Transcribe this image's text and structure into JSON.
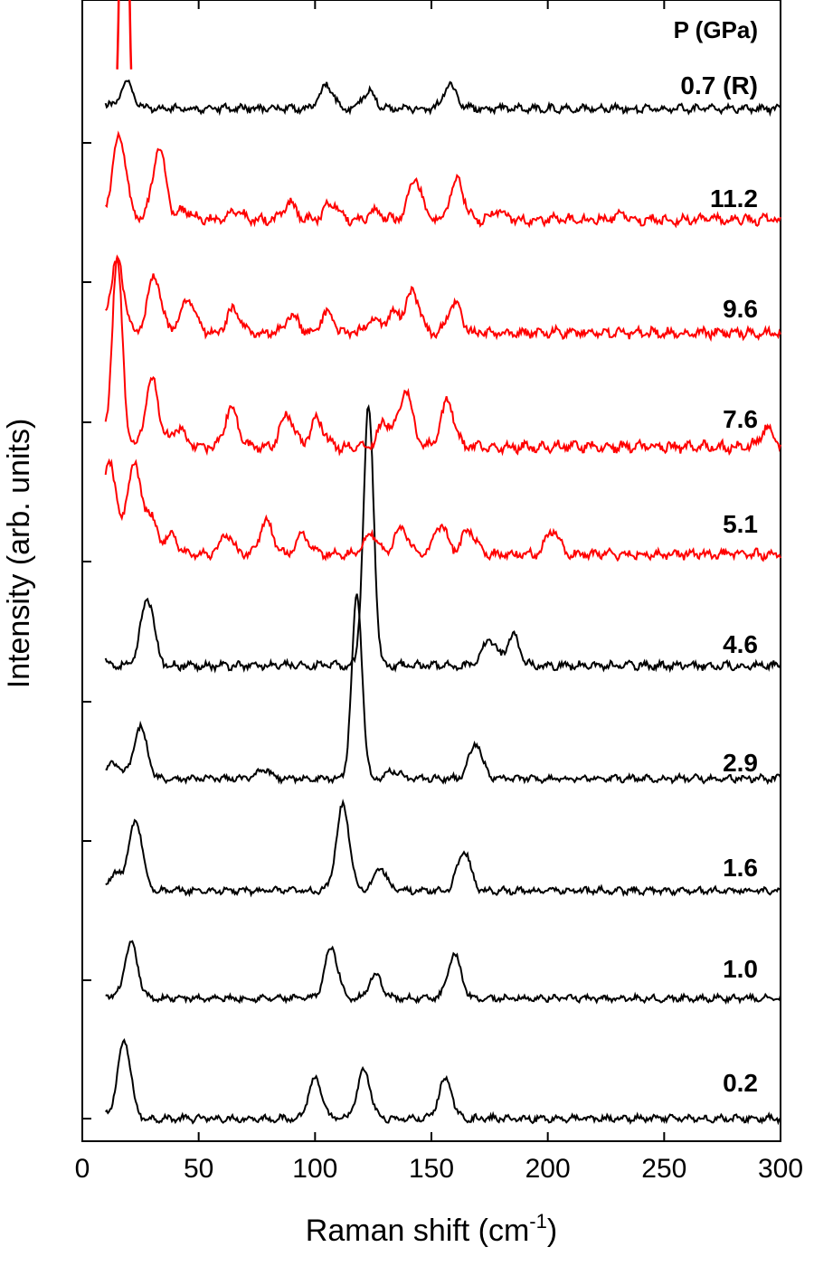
{
  "chart_data": {
    "type": "line",
    "title": "",
    "xlabel": "Raman shift (cm",
    "xlabel_superscript": "-1",
    "xlabel_suffix": ")",
    "ylabel": "Intensity (arb. units)",
    "xlim": [
      0,
      300
    ],
    "xticks": [
      0,
      50,
      100,
      150,
      200,
      250,
      300
    ],
    "grid": false,
    "legend_title": "P (GPa)",
    "colors": {
      "ambient_phase": "#000000",
      "high_pressure_phase": "#ff0000"
    },
    "series": [
      {
        "name": "0.2",
        "color": "#000000",
        "peaks": [
          [
            18,
            0.78
          ],
          [
            100,
            0.4
          ],
          [
            121,
            0.48
          ],
          [
            156,
            0.4
          ]
        ]
      },
      {
        "name": "1.0",
        "color": "#000000",
        "peaks": [
          [
            21,
            0.6
          ],
          [
            107,
            0.56
          ],
          [
            126,
            0.26
          ],
          [
            160,
            0.48
          ]
        ]
      },
      {
        "name": "1.6",
        "color": "#000000",
        "peaks": [
          [
            15,
            0.18
          ],
          [
            23,
            0.74
          ],
          [
            112,
            0.9
          ],
          [
            128,
            0.24
          ],
          [
            164,
            0.42
          ]
        ]
      },
      {
        "name": "2.9",
        "color": "#000000",
        "peaks": [
          [
            14,
            0.14
          ],
          [
            25,
            0.52
          ],
          [
            78,
            0.1
          ],
          [
            118,
            1.85
          ],
          [
            134,
            0.08
          ],
          [
            169,
            0.35
          ]
        ]
      },
      {
        "name": "4.6",
        "color": "#000000",
        "peaks": [
          [
            28,
            0.58
          ],
          [
            123,
            2.2
          ],
          [
            175,
            0.23
          ],
          [
            185,
            0.26
          ]
        ]
      },
      {
        "name": "5.1",
        "color": "#ff0000",
        "peaks": [
          [
            12,
            0.66
          ],
          [
            22,
            0.66
          ],
          [
            29,
            0.28
          ],
          [
            38,
            0.14
          ],
          [
            62,
            0.14
          ],
          [
            79,
            0.24
          ],
          [
            95,
            0.14
          ],
          [
            124,
            0.16
          ],
          [
            137,
            0.2
          ],
          [
            154,
            0.22
          ],
          [
            166,
            0.18
          ],
          [
            202,
            0.18
          ]
        ]
      },
      {
        "name": "7.6",
        "color": "#ff0000",
        "peaks": [
          [
            15,
            1.22
          ],
          [
            30,
            0.44
          ],
          [
            41,
            0.12
          ],
          [
            64,
            0.25
          ],
          [
            88,
            0.22
          ],
          [
            101,
            0.18
          ],
          [
            130,
            0.16
          ],
          [
            139,
            0.37
          ],
          [
            157,
            0.3
          ],
          [
            294,
            0.12
          ]
        ]
      },
      {
        "name": "9.6",
        "color": "#ff0000",
        "peaks": [
          [
            15,
            0.5
          ],
          [
            31,
            0.4
          ],
          [
            44,
            0.12
          ],
          [
            47,
            0.14
          ],
          [
            65,
            0.16
          ],
          [
            90,
            0.12
          ],
          [
            105,
            0.13
          ],
          [
            125,
            0.1
          ],
          [
            134,
            0.14
          ],
          [
            142,
            0.28
          ],
          [
            160,
            0.21
          ]
        ]
      },
      {
        "name": "11.2",
        "color": "#ff0000",
        "peaks": [
          [
            16,
            0.58
          ],
          [
            33,
            0.5
          ],
          [
            44,
            0.07
          ],
          [
            66,
            0.07
          ],
          [
            89,
            0.12
          ],
          [
            107,
            0.12
          ],
          [
            126,
            0.06
          ],
          [
            143,
            0.28
          ],
          [
            161,
            0.28
          ],
          [
            179,
            0.06
          ],
          [
            232,
            0.04
          ]
        ]
      },
      {
        "name": "0.7 (R)",
        "color": "#000000",
        "peaks": [
          [
            19,
            0.23
          ],
          [
            105,
            0.22
          ],
          [
            123,
            0.16
          ],
          [
            158,
            0.21
          ]
        ]
      }
    ],
    "trace_labels": [
      "0.7 (R)",
      "11.2",
      "9.6",
      "7.6",
      "5.1",
      "4.6",
      "2.9",
      "1.6",
      "1.0",
      "0.2"
    ],
    "red_recolor_peak": [
      [
        18,
        0.69
      ]
    ]
  }
}
